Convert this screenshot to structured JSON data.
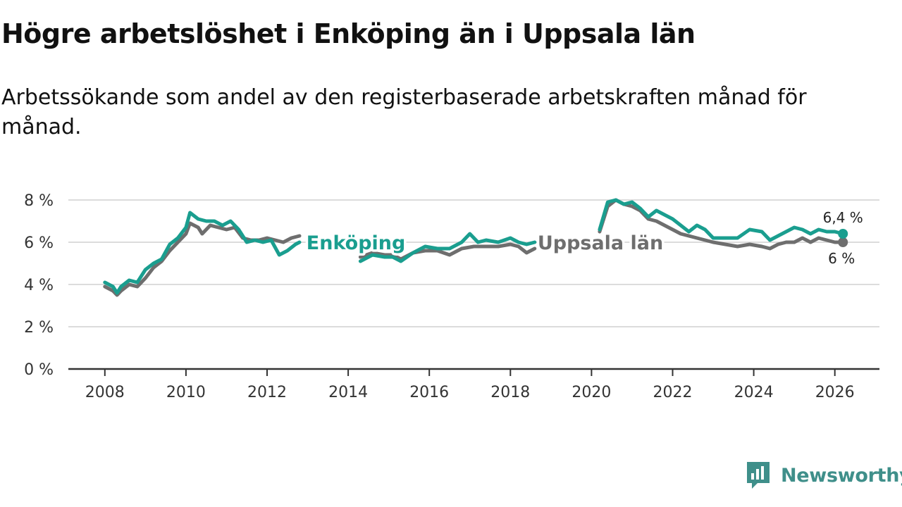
{
  "title": "Högre arbetslöshet i Enköping än i Uppsala län",
  "subtitle": "Arbetssökande som andel av den registerbaserade arbetskraften månad för månad.",
  "brand": {
    "name": "Newsworthy",
    "icon": "chat-bar-chart-icon",
    "color": "#3f8f8a"
  },
  "chart_data": {
    "type": "line",
    "title": "Högre arbetslöshet i Enköping än i Uppsala län",
    "subtitle": "Arbetssökande som andel av den registerbaserade arbetskraften månad för månad.",
    "xlabel": "",
    "ylabel": "",
    "xlim": [
      2007.1,
      2027.1
    ],
    "ylim": [
      0,
      8
    ],
    "yticks": [
      0,
      2,
      4,
      6,
      8
    ],
    "ytick_labels": [
      "0 %",
      "2 %",
      "4 %",
      "6 %",
      "8 %"
    ],
    "xticks": [
      2008,
      2010,
      2012,
      2014,
      2016,
      2018,
      2020,
      2022,
      2024,
      2026
    ],
    "xtick_labels": [
      "2008",
      "2010",
      "2012",
      "2014",
      "2016",
      "2018",
      "2020",
      "2022",
      "2024",
      "2026"
    ],
    "grid": true,
    "series": [
      {
        "name": "Uppsala län",
        "color": "#6e6e6e",
        "end_label": "6 %",
        "points": [
          [
            2008.0,
            3.9
          ],
          [
            2008.2,
            3.7
          ],
          [
            2008.3,
            3.5
          ],
          [
            2008.4,
            3.7
          ],
          [
            2008.6,
            4.0
          ],
          [
            2008.8,
            3.9
          ],
          [
            2009.0,
            4.3
          ],
          [
            2009.2,
            4.8
          ],
          [
            2009.4,
            5.1
          ],
          [
            2009.6,
            5.6
          ],
          [
            2009.8,
            6.0
          ],
          [
            2010.0,
            6.4
          ],
          [
            2010.1,
            6.9
          ],
          [
            2010.3,
            6.7
          ],
          [
            2010.4,
            6.4
          ],
          [
            2010.6,
            6.8
          ],
          [
            2010.8,
            6.7
          ],
          [
            2011.0,
            6.6
          ],
          [
            2011.2,
            6.7
          ],
          [
            2011.4,
            6.2
          ],
          [
            2011.6,
            6.1
          ],
          [
            2011.8,
            6.1
          ],
          [
            2012.0,
            6.2
          ],
          [
            2012.2,
            6.1
          ],
          [
            2012.4,
            6.0
          ],
          [
            2012.6,
            6.2
          ],
          [
            2012.8,
            6.3
          ],
          [
            2014.3,
            5.3
          ],
          [
            2014.6,
            5.5
          ],
          [
            2014.9,
            5.4
          ],
          [
            2015.1,
            5.4
          ],
          [
            2015.3,
            5.2
          ],
          [
            2015.6,
            5.5
          ],
          [
            2015.9,
            5.6
          ],
          [
            2016.2,
            5.6
          ],
          [
            2016.5,
            5.4
          ],
          [
            2016.8,
            5.7
          ],
          [
            2017.1,
            5.8
          ],
          [
            2017.4,
            5.8
          ],
          [
            2017.7,
            5.8
          ],
          [
            2018.0,
            5.9
          ],
          [
            2018.2,
            5.8
          ],
          [
            2018.4,
            5.5
          ],
          [
            2018.6,
            5.7
          ],
          [
            2020.2,
            6.5
          ],
          [
            2020.4,
            7.7
          ],
          [
            2020.6,
            8.0
          ],
          [
            2020.8,
            7.8
          ],
          [
            2021.0,
            7.7
          ],
          [
            2021.2,
            7.5
          ],
          [
            2021.4,
            7.1
          ],
          [
            2021.6,
            7.0
          ],
          [
            2021.8,
            6.8
          ],
          [
            2022.0,
            6.6
          ],
          [
            2022.2,
            6.4
          ],
          [
            2022.4,
            6.3
          ],
          [
            2022.6,
            6.2
          ],
          [
            2022.8,
            6.1
          ],
          [
            2023.0,
            6.0
          ],
          [
            2023.3,
            5.9
          ],
          [
            2023.6,
            5.8
          ],
          [
            2023.9,
            5.9
          ],
          [
            2024.2,
            5.8
          ],
          [
            2024.4,
            5.7
          ],
          [
            2024.6,
            5.9
          ],
          [
            2024.8,
            6.0
          ],
          [
            2025.0,
            6.0
          ],
          [
            2025.2,
            6.2
          ],
          [
            2025.4,
            6.0
          ],
          [
            2025.6,
            6.2
          ],
          [
            2025.8,
            6.1
          ],
          [
            2026.0,
            6.0
          ],
          [
            2026.2,
            6.0
          ]
        ]
      },
      {
        "name": "Enköping",
        "color": "#1a9e8f",
        "end_label": "6,4 %",
        "points": [
          [
            2008.0,
            4.1
          ],
          [
            2008.2,
            3.9
          ],
          [
            2008.3,
            3.6
          ],
          [
            2008.4,
            3.9
          ],
          [
            2008.6,
            4.2
          ],
          [
            2008.8,
            4.1
          ],
          [
            2009.0,
            4.7
          ],
          [
            2009.2,
            5.0
          ],
          [
            2009.4,
            5.2
          ],
          [
            2009.6,
            5.9
          ],
          [
            2009.8,
            6.2
          ],
          [
            2010.0,
            6.7
          ],
          [
            2010.1,
            7.4
          ],
          [
            2010.3,
            7.1
          ],
          [
            2010.5,
            7.0
          ],
          [
            2010.7,
            7.0
          ],
          [
            2010.9,
            6.8
          ],
          [
            2011.1,
            7.0
          ],
          [
            2011.3,
            6.6
          ],
          [
            2011.5,
            6.0
          ],
          [
            2011.7,
            6.1
          ],
          [
            2011.9,
            6.0
          ],
          [
            2012.1,
            6.1
          ],
          [
            2012.3,
            5.4
          ],
          [
            2012.5,
            5.6
          ],
          [
            2012.7,
            5.9
          ],
          [
            2012.8,
            6.0
          ],
          [
            2014.3,
            5.1
          ],
          [
            2014.6,
            5.4
          ],
          [
            2014.9,
            5.3
          ],
          [
            2015.1,
            5.3
          ],
          [
            2015.3,
            5.1
          ],
          [
            2015.6,
            5.5
          ],
          [
            2015.9,
            5.8
          ],
          [
            2016.2,
            5.7
          ],
          [
            2016.5,
            5.7
          ],
          [
            2016.8,
            6.0
          ],
          [
            2017.0,
            6.4
          ],
          [
            2017.2,
            6.0
          ],
          [
            2017.4,
            6.1
          ],
          [
            2017.7,
            6.0
          ],
          [
            2018.0,
            6.2
          ],
          [
            2018.2,
            6.0
          ],
          [
            2018.4,
            5.9
          ],
          [
            2018.6,
            6.0
          ],
          [
            2020.2,
            6.6
          ],
          [
            2020.4,
            7.9
          ],
          [
            2020.6,
            8.0
          ],
          [
            2020.8,
            7.8
          ],
          [
            2021.0,
            7.9
          ],
          [
            2021.2,
            7.6
          ],
          [
            2021.4,
            7.2
          ],
          [
            2021.6,
            7.5
          ],
          [
            2021.8,
            7.3
          ],
          [
            2022.0,
            7.1
          ],
          [
            2022.2,
            6.8
          ],
          [
            2022.4,
            6.5
          ],
          [
            2022.6,
            6.8
          ],
          [
            2022.8,
            6.6
          ],
          [
            2023.0,
            6.2
          ],
          [
            2023.3,
            6.2
          ],
          [
            2023.6,
            6.2
          ],
          [
            2023.9,
            6.6
          ],
          [
            2024.2,
            6.5
          ],
          [
            2024.4,
            6.1
          ],
          [
            2024.6,
            6.3
          ],
          [
            2024.8,
            6.5
          ],
          [
            2025.0,
            6.7
          ],
          [
            2025.2,
            6.6
          ],
          [
            2025.4,
            6.4
          ],
          [
            2025.6,
            6.6
          ],
          [
            2025.8,
            6.5
          ],
          [
            2026.0,
            6.5
          ],
          [
            2026.2,
            6.4
          ]
        ]
      }
    ],
    "annotations": [
      {
        "text": "Enköping",
        "series": "Enköping",
        "at": [
          2012.9,
          6.0
        ]
      },
      {
        "text": "Uppsala län",
        "series": "Uppsala län",
        "at": [
          2018.6,
          6.0
        ]
      }
    ]
  }
}
